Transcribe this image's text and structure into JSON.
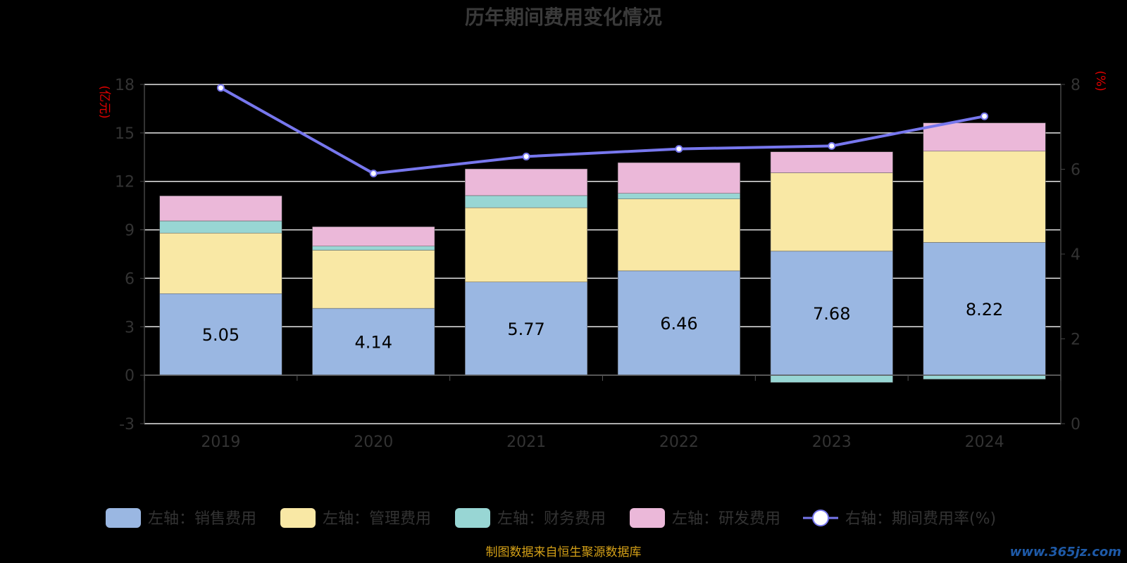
{
  "chart_data": {
    "type": "bar",
    "title": "历年期间费用变化情况",
    "categories": [
      "2019",
      "2020",
      "2021",
      "2022",
      "2023",
      "2024"
    ],
    "left_axis": {
      "unit": "(亿元)",
      "ylim": [
        -3,
        18
      ],
      "ticks": [
        -3,
        0,
        3,
        6,
        9,
        12,
        15,
        18
      ]
    },
    "right_axis": {
      "unit": "(%)",
      "ylim": [
        0,
        8
      ],
      "ticks": [
        0,
        2,
        4,
        6,
        8
      ]
    },
    "series": [
      {
        "name": "左轴：销售费用",
        "type": "bar",
        "axis": "left",
        "color": "#9ab7e2",
        "values": [
          5.05,
          4.14,
          5.77,
          6.46,
          7.68,
          8.22
        ],
        "labels": [
          "5.05",
          "4.14",
          "5.77",
          "6.46",
          "7.68",
          "8.22"
        ]
      },
      {
        "name": "左轴：管理费用",
        "type": "bar",
        "axis": "left",
        "color": "#f9e8a5",
        "values": [
          3.75,
          3.6,
          4.6,
          4.45,
          4.85,
          5.65
        ]
      },
      {
        "name": "左轴：财务费用",
        "type": "bar",
        "axis": "left",
        "color": "#98d6d4",
        "values": [
          0.75,
          0.25,
          0.75,
          0.35,
          -0.45,
          -0.25
        ]
      },
      {
        "name": "左轴：研发费用",
        "type": "bar",
        "axis": "left",
        "color": "#ebb8d9",
        "values": [
          1.55,
          1.2,
          1.65,
          1.9,
          1.3,
          1.75
        ]
      },
      {
        "name": "右轴：期间费用率(%)",
        "type": "line",
        "axis": "right",
        "color": "#7777ee",
        "values": [
          7.92,
          5.9,
          6.3,
          6.48,
          6.55,
          7.25
        ]
      }
    ],
    "grid": true,
    "legend_position": "bottom"
  },
  "source": "制图数据来自恒生聚源数据库",
  "watermark": "www.365jz.com"
}
